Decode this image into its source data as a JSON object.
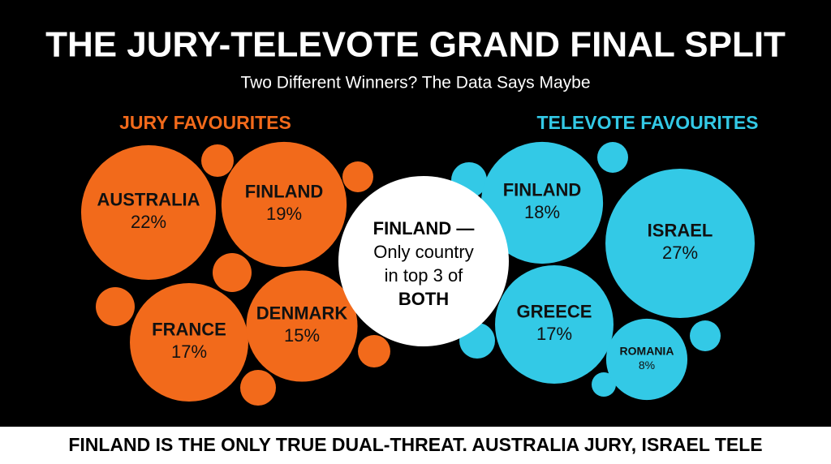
{
  "title": "THE JURY-TELEVOTE GRAND FINAL SPLIT",
  "subtitle": "Two Different Winners? The Data Says Maybe",
  "center_note": [
    "FINLAND —",
    "Only country",
    "in top 3 of",
    "BOTH"
  ],
  "footer": "FINLAND IS THE ONLY TRUE DUAL-THREAT. AUSTRALIA JURY, ISRAEL TELE",
  "chart_data": [
    {
      "type": "bubble",
      "title": "JURY FAVOURITES",
      "color": "#f26a1b",
      "categories": [
        "AUSTRALIA",
        "FINLAND",
        "FRANCE",
        "DENMARK"
      ],
      "values": [
        22,
        19,
        17,
        15
      ],
      "value_labels": [
        "22%",
        "19%",
        "17%",
        "15%"
      ]
    },
    {
      "type": "bubble",
      "title": "TELEVOTE FAVOURITES",
      "color": "#33c9e6",
      "categories": [
        "FINLAND",
        "ISRAEL",
        "GREECE",
        "ROMANIA"
      ],
      "values": [
        18,
        27,
        17,
        8
      ],
      "value_labels": [
        "18%",
        "27%",
        "17%",
        "8%"
      ]
    }
  ]
}
